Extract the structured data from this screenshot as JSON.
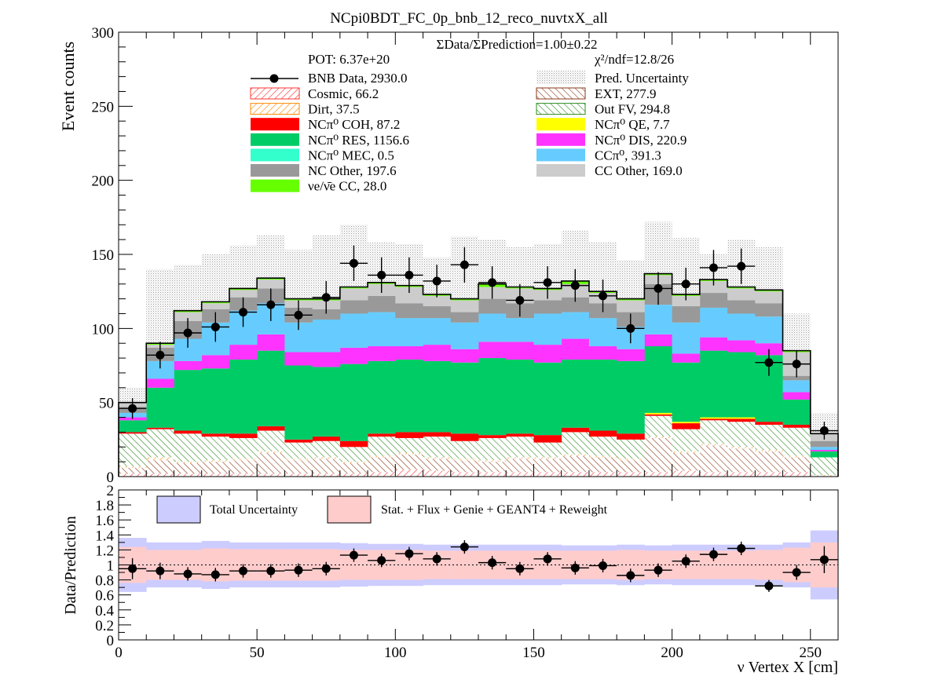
{
  "chart_data": [
    {
      "type": "bar",
      "title": "NCpi0BDT_FC_0p_bnb_12_reco_nuvtxX_all",
      "ylabel": "Event counts",
      "ylim": [
        0,
        300
      ],
      "xlim": [
        0,
        260
      ],
      "yticks": [
        "0",
        "50",
        "100",
        "150",
        "200",
        "250",
        "300"
      ],
      "ratio_text": "ΣData/ΣPrediction=1.00±0.22",
      "pot_text": "POT: 6.37e+20",
      "chi2_text": "χ²/ndf=12.8/26",
      "bin_edges": [
        0,
        10,
        20,
        30,
        40,
        50,
        60,
        70,
        80,
        90,
        100,
        110,
        120,
        130,
        140,
        150,
        160,
        170,
        180,
        190,
        200,
        210,
        220,
        230,
        240,
        250,
        260
      ],
      "series": [
        {
          "name": "Cosmic, 66.2",
          "color": "#ff3333",
          "hatch": true,
          "values": [
            2,
            2,
            2,
            2,
            2,
            2,
            2,
            2,
            2,
            3,
            5,
            4,
            3,
            3,
            3,
            3,
            3,
            3,
            3,
            3,
            4,
            3,
            3,
            3,
            3,
            0
          ]
        },
        {
          "name": "EXT, 277.9",
          "color": "#8a3a1a",
          "hatch": true,
          "values": [
            4,
            9,
            7,
            8,
            9,
            14,
            9,
            10,
            7,
            10,
            10,
            8,
            8,
            7,
            9,
            9,
            11,
            10,
            8,
            23,
            12,
            18,
            16,
            14,
            10,
            0
          ]
        },
        {
          "name": "Dirt, 37.5",
          "color": "#ff8800",
          "hatch": true,
          "values": [
            1,
            2,
            1,
            1,
            1,
            1,
            1,
            1,
            1,
            1,
            1,
            1,
            1,
            1,
            1,
            1,
            1,
            1,
            1,
            1,
            1,
            1,
            1,
            1,
            1,
            1
          ]
        },
        {
          "name": "Out FV, 294.8",
          "color": "#2e8b22",
          "hatch": true,
          "values": [
            22,
            19,
            19,
            16,
            14,
            14,
            11,
            11,
            10,
            13,
            10,
            14,
            12,
            15,
            14,
            10,
            15,
            13,
            13,
            14,
            15,
            16,
            17,
            17,
            19,
            12
          ]
        },
        {
          "name": "NCπ⁰ COH,  87.2",
          "color": "#ff0000",
          "values": [
            1,
            1,
            2,
            2,
            3,
            3,
            2,
            3,
            4,
            2,
            4,
            3,
            5,
            2,
            2,
            5,
            3,
            4,
            4,
            1,
            4,
            1,
            2,
            2,
            2,
            0
          ]
        },
        {
          "name": "NCπ⁰ QE,  7.7",
          "color": "#ffff00",
          "values": [
            0,
            0,
            0,
            0,
            0,
            0,
            0,
            0,
            0,
            0,
            0,
            0,
            0,
            0,
            0,
            0,
            0,
            0,
            0,
            1,
            1,
            1,
            1,
            0,
            0,
            0
          ]
        },
        {
          "name": "NCπ⁰ RES,  1156.6",
          "color": "#00cc66",
          "values": [
            8,
            27,
            41,
            44,
            50,
            51,
            50,
            47,
            52,
            49,
            49,
            48,
            48,
            52,
            50,
            49,
            46,
            48,
            49,
            45,
            40,
            45,
            44,
            45,
            17,
            4
          ]
        },
        {
          "name": "NCπ⁰ DIS,  220.9",
          "color": "#ff33ff",
          "values": [
            2,
            6,
            6,
            9,
            10,
            11,
            9,
            10,
            11,
            10,
            9,
            11,
            9,
            11,
            12,
            12,
            14,
            9,
            8,
            8,
            6,
            9,
            8,
            8,
            5,
            1
          ]
        },
        {
          "name": "NCπ⁰ MEC,  0.5",
          "color": "#33ffcc",
          "values": [
            0,
            0,
            0,
            0,
            0,
            0,
            0,
            0,
            0,
            0,
            0,
            0,
            0,
            0,
            0,
            0,
            0,
            0,
            0,
            0,
            0,
            0,
            0,
            0,
            0,
            0
          ]
        },
        {
          "name": "CCπ⁰, 391.3",
          "color": "#66ccff",
          "values": [
            3,
            12,
            15,
            22,
            23,
            21,
            20,
            22,
            23,
            23,
            19,
            18,
            18,
            19,
            16,
            21,
            18,
            19,
            15,
            20,
            21,
            20,
            18,
            18,
            8,
            2
          ]
        },
        {
          "name": "NC Other, 197.6",
          "color": "#999999",
          "values": [
            4,
            9,
            12,
            9,
            9,
            10,
            10,
            7,
            9,
            11,
            10,
            8,
            7,
            10,
            10,
            9,
            10,
            10,
            10,
            14,
            11,
            10,
            9,
            9,
            3,
            4
          ]
        },
        {
          "name": "CC Other, 169.0",
          "color": "#cccccc",
          "values": [
            3,
            2,
            6,
            4,
            5,
            6,
            5,
            6,
            8,
            8,
            11,
            7,
            8,
            8,
            10,
            7,
            9,
            7,
            8,
            6,
            7,
            8,
            8,
            8,
            16,
            5
          ]
        },
        {
          "name": "νe/ν̄e CC, 28.0",
          "color": "#66ff00",
          "values": [
            0,
            1,
            1,
            1,
            1,
            1,
            1,
            1,
            1,
            1,
            1,
            1,
            1,
            2,
            1,
            1,
            2,
            1,
            1,
            1,
            1,
            1,
            1,
            1,
            1,
            0
          ]
        }
      ],
      "prediction_uncertainty": {
        "name": "Pred. Uncertainty",
        "upper": [
          60,
          140,
          143,
          150,
          156,
          163,
          153,
          163,
          170,
          158,
          157,
          148,
          162,
          160,
          155,
          157,
          166,
          158,
          146,
          172,
          161,
          150,
          160,
          155,
          110,
          43
        ]
      },
      "data": {
        "name": "BNB Data, 2930.0",
        "x": [
          5,
          15,
          25,
          35,
          45,
          55,
          65,
          75,
          85,
          95,
          105,
          115,
          125,
          135,
          145,
          155,
          165,
          175,
          185,
          195,
          205,
          215,
          225,
          235,
          245,
          255
        ],
        "y": [
          46,
          82,
          97,
          101,
          111,
          116,
          109,
          121,
          144,
          136,
          136,
          132,
          143,
          131,
          119,
          131,
          129,
          122,
          100,
          127,
          130,
          141,
          142,
          77,
          76,
          31
        ],
        "yerr": [
          7,
          9,
          10,
          10,
          10,
          11,
          10,
          11,
          12,
          12,
          12,
          11,
          12,
          11,
          11,
          11,
          11,
          11,
          10,
          11,
          11,
          12,
          12,
          9,
          9,
          6
        ]
      }
    },
    {
      "type": "line",
      "ylabel": "Data/Prediction",
      "xlabel": "ν Vertex X [cm]",
      "ylim": [
        0,
        2
      ],
      "xlim": [
        0,
        260
      ],
      "yticks": [
        "0",
        "0.2",
        "0.4",
        "0.6",
        "0.8",
        "1",
        "1.2",
        "1.4",
        "1.6",
        "1.8",
        "2"
      ],
      "xticks": [
        "0",
        "50",
        "100",
        "150",
        "200",
        "250"
      ],
      "legend": [
        {
          "name": "Total Uncertainty",
          "color": "#ccccff"
        },
        {
          "name": "Stat. + Flux + Genie + GEANT4 + Reweight",
          "color": "#ffcccc"
        }
      ],
      "total_uncertainty_halfwidth": [
        0.36,
        0.3,
        0.3,
        0.32,
        0.3,
        0.3,
        0.3,
        0.3,
        0.29,
        0.28,
        0.28,
        0.27,
        0.27,
        0.27,
        0.27,
        0.27,
        0.26,
        0.26,
        0.27,
        0.26,
        0.27,
        0.27,
        0.27,
        0.27,
        0.3,
        0.46
      ],
      "syst_uncertainty_halfwidth": [
        0.24,
        0.2,
        0.2,
        0.22,
        0.21,
        0.21,
        0.21,
        0.21,
        0.2,
        0.2,
        0.2,
        0.19,
        0.19,
        0.19,
        0.19,
        0.19,
        0.19,
        0.19,
        0.2,
        0.19,
        0.19,
        0.19,
        0.19,
        0.2,
        0.23,
        0.3
      ],
      "x": [
        5,
        15,
        25,
        35,
        45,
        55,
        65,
        75,
        85,
        95,
        105,
        115,
        125,
        135,
        145,
        155,
        165,
        175,
        185,
        195,
        205,
        215,
        225,
        235,
        245,
        255
      ],
      "ratio": [
        0.95,
        0.92,
        0.88,
        0.87,
        0.92,
        0.92,
        0.93,
        0.95,
        1.13,
        1.06,
        1.15,
        1.08,
        1.24,
        1.03,
        0.95,
        1.08,
        0.96,
        0.99,
        0.86,
        0.93,
        1.05,
        1.14,
        1.22,
        0.72,
        0.9,
        1.07
      ],
      "ratio_err": [
        0.14,
        0.11,
        0.09,
        0.09,
        0.09,
        0.09,
        0.09,
        0.09,
        0.09,
        0.09,
        0.09,
        0.09,
        0.09,
        0.09,
        0.09,
        0.09,
        0.09,
        0.09,
        0.09,
        0.09,
        0.09,
        0.09,
        0.09,
        0.08,
        0.1,
        0.18
      ]
    }
  ]
}
